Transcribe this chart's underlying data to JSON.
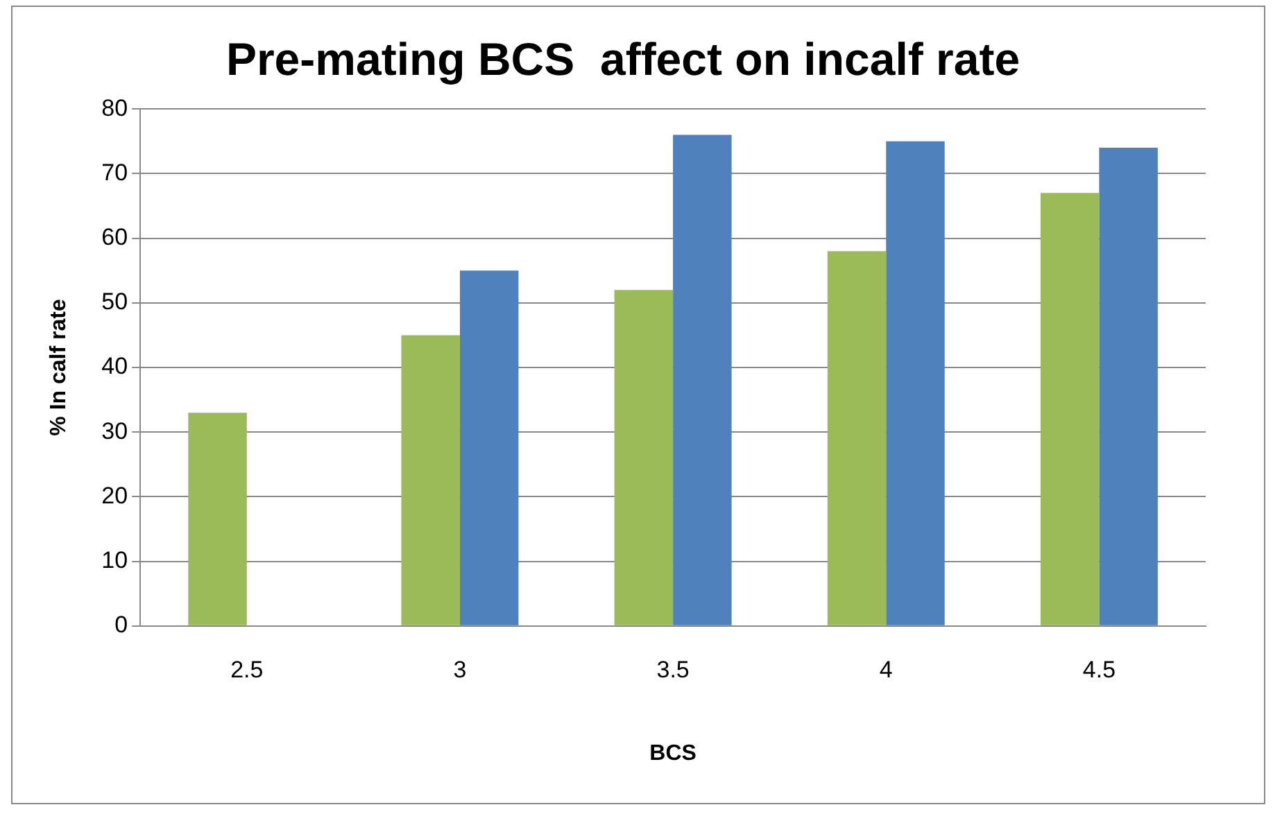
{
  "chart_data": {
    "type": "bar",
    "title": "Pre-mating BCS  affect on incalf rate",
    "xlabel": "BCS",
    "ylabel": "% In calf rate",
    "categories": [
      "2.5",
      "3",
      "3.5",
      "4",
      "4.5"
    ],
    "series": [
      {
        "color": "#9bbb59",
        "values": [
          33,
          45,
          52,
          58,
          67
        ]
      },
      {
        "color": "#4f81bd",
        "values": [
          null,
          55,
          76,
          75,
          74
        ]
      }
    ],
    "ylim": [
      0,
      80
    ],
    "yticks": [
      0,
      10,
      20,
      30,
      40,
      50,
      60,
      70,
      80
    ],
    "grid": "y"
  }
}
